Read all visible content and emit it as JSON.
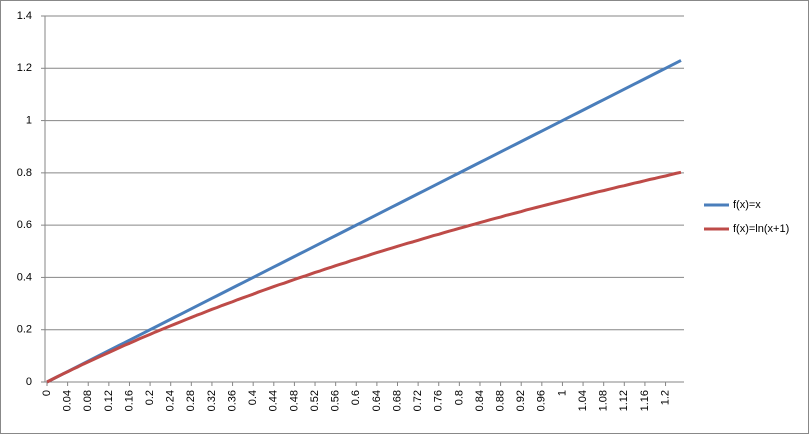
{
  "chart_data": {
    "type": "line",
    "categories": [
      0,
      null,
      null,
      null,
      0.04,
      null,
      null,
      null,
      0.08,
      null,
      null,
      null,
      0.12,
      null,
      null,
      null,
      0.16,
      null,
      null,
      null,
      0.2,
      null,
      null,
      null,
      0.24,
      null,
      null,
      null,
      0.28,
      null,
      null,
      null,
      0.32,
      null,
      null,
      null,
      0.36,
      null,
      null,
      null,
      0.4,
      null,
      null,
      null,
      0.44,
      null,
      null,
      null,
      0.48,
      null,
      null,
      null,
      0.52,
      null,
      null,
      null,
      0.56,
      null,
      null,
      null,
      0.6,
      null,
      null,
      null,
      0.64,
      null,
      null,
      null,
      0.68,
      null,
      null,
      null,
      0.72,
      null,
      null,
      null,
      0.76,
      null,
      null,
      null,
      0.8,
      null,
      null,
      null,
      0.84,
      null,
      null,
      null,
      0.88,
      null,
      null,
      null,
      0.92,
      null,
      null,
      null,
      0.96,
      null,
      null,
      null,
      1,
      null,
      null,
      null,
      1.04,
      null,
      null,
      null,
      1.08,
      null,
      null,
      null,
      1.12,
      null,
      null,
      null,
      1.16,
      null,
      null,
      null,
      1.2,
      null,
      null,
      null
    ],
    "series": [
      {
        "name": "f(x)=x",
        "color": "#4a7ebb",
        "values": [
          0,
          0.01,
          0.02,
          0.03,
          0.04,
          0.05,
          0.06,
          0.07,
          0.08,
          0.09,
          0.1,
          0.11,
          0.12,
          0.13,
          0.14,
          0.15,
          0.16,
          0.17,
          0.18,
          0.19,
          0.2,
          0.21,
          0.22,
          0.23,
          0.24,
          0.25,
          0.26,
          0.27,
          0.28,
          0.29,
          0.3,
          0.31,
          0.32,
          0.33,
          0.34,
          0.35,
          0.36,
          0.37,
          0.38,
          0.39,
          0.4,
          0.41,
          0.42,
          0.43,
          0.44,
          0.45,
          0.46,
          0.47,
          0.48,
          0.49,
          0.5,
          0.51,
          0.52,
          0.53,
          0.54,
          0.55,
          0.56,
          0.57,
          0.58,
          0.59,
          0.6,
          0.61,
          0.62,
          0.63,
          0.64,
          0.65,
          0.66,
          0.67,
          0.68,
          0.69,
          0.7,
          0.71,
          0.72,
          0.73,
          0.74,
          0.75,
          0.76,
          0.77,
          0.78,
          0.79,
          0.8,
          0.81,
          0.82,
          0.83,
          0.84,
          0.85,
          0.86,
          0.87,
          0.88,
          0.89,
          0.9,
          0.91,
          0.92,
          0.93,
          0.94,
          0.95,
          0.96,
          0.97,
          0.98,
          0.99,
          1,
          1.01,
          1.02,
          1.03,
          1.04,
          1.05,
          1.06,
          1.07,
          1.08,
          1.09,
          1.1,
          1.11,
          1.12,
          1.13,
          1.14,
          1.15,
          1.16,
          1.17,
          1.18,
          1.19,
          1.2,
          1.21,
          1.22,
          1.23
        ]
      },
      {
        "name": "f(x)=ln(x+1)",
        "color": "#be4b48",
        "values": [
          0,
          0.01,
          0.02,
          0.03,
          0.039,
          0.049,
          0.058,
          0.068,
          0.077,
          0.086,
          0.095,
          0.104,
          0.113,
          0.122,
          0.131,
          0.14,
          0.148,
          0.157,
          0.166,
          0.174,
          0.182,
          0.191,
          0.199,
          0.207,
          0.215,
          0.223,
          0.231,
          0.239,
          0.247,
          0.255,
          0.262,
          0.27,
          0.278,
          0.285,
          0.293,
          0.3,
          0.307,
          0.315,
          0.322,
          0.329,
          0.336,
          0.344,
          0.351,
          0.358,
          0.365,
          0.372,
          0.378,
          0.385,
          0.392,
          0.399,
          0.405,
          0.412,
          0.419,
          0.425,
          0.432,
          0.438,
          0.445,
          0.451,
          0.457,
          0.464,
          0.47,
          0.476,
          0.482,
          0.489,
          0.495,
          0.501,
          0.507,
          0.513,
          0.519,
          0.525,
          0.531,
          0.536,
          0.542,
          0.548,
          0.554,
          0.56,
          0.565,
          0.571,
          0.577,
          0.582,
          0.588,
          0.593,
          0.599,
          0.604,
          0.61,
          0.615,
          0.621,
          0.626,
          0.631,
          0.637,
          0.642,
          0.647,
          0.652,
          0.658,
          0.663,
          0.668,
          0.673,
          0.678,
          0.683,
          0.688,
          0.693,
          0.698,
          0.703,
          0.708,
          0.713,
          0.718,
          0.723,
          0.728,
          0.732,
          0.737,
          0.742,
          0.747,
          0.751,
          0.756,
          0.761,
          0.765,
          0.77,
          0.775,
          0.779,
          0.784,
          0.788,
          0.793,
          0.798,
          0.802
        ]
      }
    ],
    "ylim": [
      0,
      1.4
    ],
    "yticks": [
      0,
      0.2,
      0.4,
      0.6,
      0.8,
      1,
      1.2,
      1.4
    ],
    "grid": true,
    "legend": "right"
  }
}
